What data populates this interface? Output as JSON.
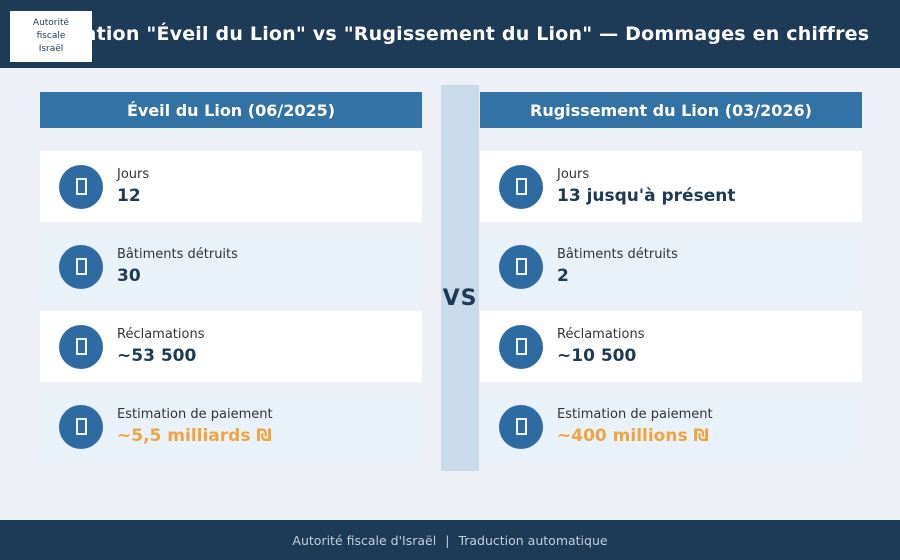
{
  "header": {
    "title": "Opération \"Éveil du Lion\" vs \"Rugissement du Lion\" — Dommages en chiffres",
    "logo": {
      "lines": [
        "Autorité",
        "fiscale",
        "Israël"
      ]
    }
  },
  "comparison": {
    "vs_label": "VS",
    "columns": [
      {
        "title": "Éveil du Lion (06/2025)",
        "stats": [
          {
            "label": "Jours",
            "value": "12",
            "icon": "missing-glyph"
          },
          {
            "label": "Bâtiments détruits",
            "value": "30",
            "icon": "missing-glyph"
          },
          {
            "label": "Réclamations",
            "value": "~53 500",
            "icon": "missing-glyph"
          },
          {
            "label": "Estimation de paiement",
            "value": "~5,5 milliards ₪",
            "icon": "missing-glyph"
          }
        ]
      },
      {
        "title": "Rugissement du Lion (03/2026)",
        "stats": [
          {
            "label": "Jours",
            "value": "13 jusqu'à présent",
            "icon": "missing-glyph"
          },
          {
            "label": "Bâtiments détruits",
            "value": "2",
            "icon": "missing-glyph"
          },
          {
            "label": "Réclamations",
            "value": "~10 500",
            "icon": "missing-glyph"
          },
          {
            "label": "Estimation de paiement",
            "value": "~400 millions ₪",
            "icon": "missing-glyph"
          }
        ]
      }
    ]
  },
  "footer": {
    "left": "Autorité fiscale d'Israël",
    "separator": "|",
    "right": "Traduction automatique"
  },
  "colors": {
    "navy": "#1d3a57",
    "steel": "#3272a4",
    "circle": "#2e6ba3",
    "band": "#c9daea",
    "page_bg": "#edf1f7",
    "card_alt": "#e9f1f9",
    "card_white": "#ffffff",
    "orange": "#efa440",
    "value_color": "#1d3a57",
    "label_color": "#333333",
    "footer_text": "#c3cfdc"
  }
}
